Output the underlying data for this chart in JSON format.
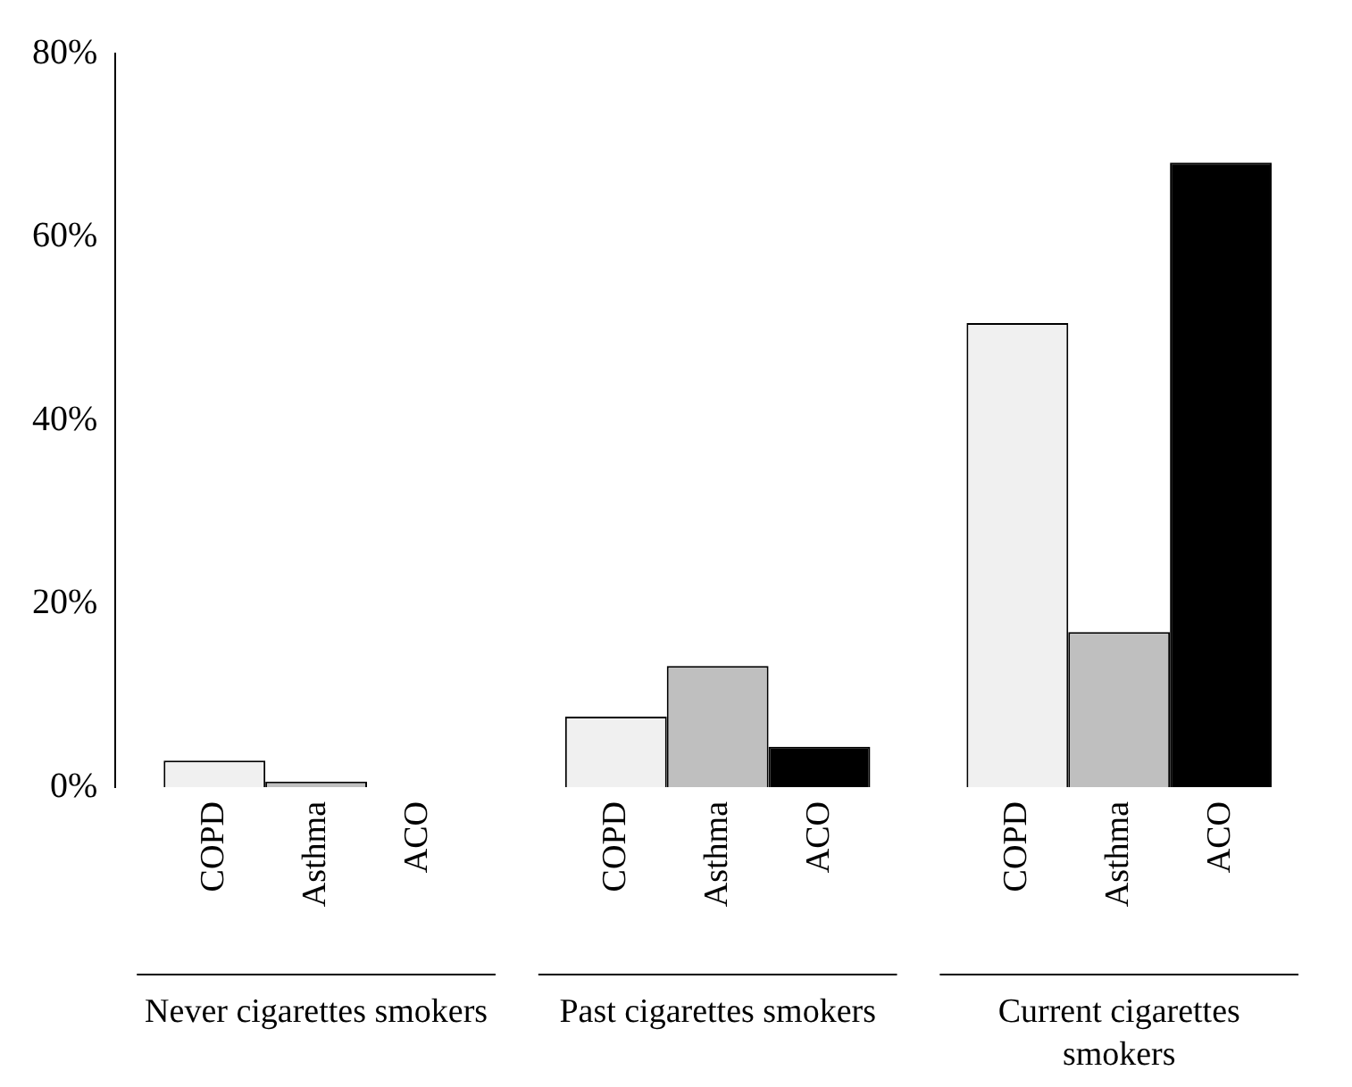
{
  "chart_data": {
    "type": "bar",
    "categories": [
      "Never cigarettes smokers",
      "Past cigarettes smokers",
      "Current cigarettes smokers"
    ],
    "series": [
      {
        "name": "COPD",
        "color": "#f0f0f0",
        "values": [
          2.9,
          7.7,
          50.6
        ]
      },
      {
        "name": "Asthma",
        "color": "#bfbfbf",
        "values": [
          0.6,
          13.2,
          16.9
        ]
      },
      {
        "name": "ACO",
        "color": "#000000",
        "values": [
          0,
          4.4,
          68.1
        ]
      }
    ],
    "ylim": [
      0,
      80
    ],
    "yticks": [
      {
        "value": 0,
        "label": "0%"
      },
      {
        "value": 20,
        "label": "20%"
      },
      {
        "value": 40,
        "label": "40%"
      },
      {
        "value": 60,
        "label": "60%"
      },
      {
        "value": 80,
        "label": "80%"
      }
    ],
    "grid": false,
    "legend": false
  }
}
